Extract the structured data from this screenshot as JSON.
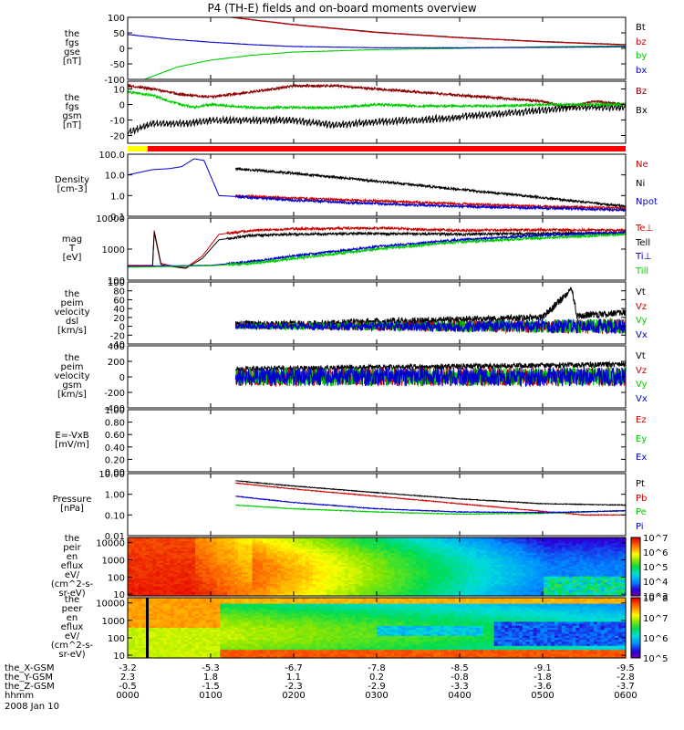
{
  "title": "P4 (TH-E) fields and on-board moments overview",
  "date": "2008 Jan 10",
  "colorbars": {
    "eflux_i": {
      "labels": [
        "10^7",
        "10^6",
        "10^5",
        "10^4",
        "10^3"
      ],
      "exps": [
        7,
        6,
        5,
        4,
        3
      ]
    },
    "eflux_e": {
      "labels": [
        "10^8",
        "10^7",
        "10^6",
        "10^5"
      ],
      "exps": [
        8,
        7,
        6,
        5
      ]
    }
  },
  "colors": {
    "black": "#000000",
    "red": "#cc0000",
    "green": "#00cc00",
    "blue": "#0000cc",
    "darkred": "#8b0000"
  },
  "ephemeris": {
    "rows": [
      {
        "label": "the_X-GSM",
        "values": [
          "-3.2",
          "-5.3",
          "-6.7",
          "-7.8",
          "-8.5",
          "-9.1",
          "-9.5"
        ]
      },
      {
        "label": "the_Y-GSM",
        "values": [
          "2.3",
          "1.8",
          "1.1",
          "0.2",
          "-0.8",
          "-1.8",
          "-2.8"
        ]
      },
      {
        "label": "the_Z-GSM",
        "values": [
          "-0.5",
          "-1.5",
          "-2.3",
          "-2.9",
          "-3.3",
          "-3.6",
          "-3.7"
        ]
      },
      {
        "label": "hhmm",
        "values": [
          "0000",
          "0100",
          "0200",
          "0300",
          "0400",
          "0500",
          "0600"
        ]
      }
    ]
  },
  "chart_data": [
    {
      "type": "line",
      "id": "fgs_gse",
      "ylabel": [
        "the",
        "fgs",
        "gse",
        "[nT]"
      ],
      "ylim": [
        -100,
        100
      ],
      "yticks": [
        "100",
        "50",
        "0",
        "-50",
        "-100"
      ],
      "ytickvals": [
        100,
        50,
        0,
        -50,
        -100
      ],
      "series": [
        {
          "name": "Bt",
          "color": "#000000",
          "x": [
            1.25,
            2,
            3,
            4,
            5,
            6
          ],
          "y": [
            100,
            77,
            52,
            35,
            22,
            12
          ]
        },
        {
          "name": "bz",
          "color": "#cc0000",
          "x": [
            1.25,
            2,
            3,
            4,
            5,
            6
          ],
          "y": [
            100,
            76,
            51,
            34,
            21,
            11
          ]
        },
        {
          "name": "by",
          "color": "#00cc00",
          "x": [
            0.2,
            0.6,
            1,
            1.5,
            2,
            3,
            4,
            5,
            6
          ],
          "y": [
            -100,
            -60,
            -38,
            -22,
            -12,
            -4,
            0,
            5,
            8
          ]
        },
        {
          "name": "bx",
          "color": "#0000cc",
          "x": [
            0,
            0.5,
            1,
            1.5,
            2,
            3,
            4,
            5,
            6
          ],
          "y": [
            45,
            30,
            20,
            12,
            6,
            2,
            2,
            3,
            5
          ]
        }
      ]
    },
    {
      "type": "line",
      "id": "fgs_gsm",
      "ylabel": [
        "the",
        "fgs",
        "gsm",
        "[nT]"
      ],
      "ylim": [
        -25,
        15
      ],
      "yticks": [
        "10",
        "0",
        "-10",
        "-20"
      ],
      "ytickvals": [
        10,
        0,
        -10,
        -20
      ],
      "series": [
        {
          "name": "Bz",
          "color": "#8b0000",
          "x": [
            0,
            0.3,
            0.7,
            1,
            1.5,
            2,
            2.5,
            3,
            3.5,
            4,
            4.5,
            5,
            5.3,
            5.6,
            6
          ],
          "y": [
            12,
            10,
            6,
            5,
            8,
            12,
            12,
            10,
            8,
            6,
            4,
            2,
            -2,
            2,
            0
          ]
        },
        {
          "name": "Bx",
          "color": "#000000",
          "x": [
            0,
            0.3,
            0.7,
            1,
            1.5,
            2,
            2.5,
            3,
            3.5,
            4,
            4.5,
            5,
            5.3,
            5.6,
            6
          ],
          "y": [
            -20,
            -14,
            -14,
            -12,
            -12,
            -12,
            -15,
            -13,
            -12,
            -10,
            -8,
            -6,
            -4,
            -4,
            -4
          ]
        },
        {
          "name": "",
          "color": "#00cc00",
          "x": [
            0,
            0.3,
            0.5,
            0.8,
            1,
            1.5,
            2,
            2.5,
            3,
            3.5,
            4,
            4.5,
            5,
            5.5,
            6
          ],
          "y": [
            8,
            6,
            2,
            -2,
            0,
            -2,
            -2,
            -2,
            0,
            -1,
            -1,
            -1,
            0,
            0,
            0
          ]
        }
      ]
    },
    {
      "type": "flag",
      "id": "mode_bar",
      "segments": [
        {
          "x0": 0,
          "x1": 0.24,
          "color": "#ffff00"
        },
        {
          "x0": 0.24,
          "x1": 6,
          "color": "#ff0000"
        }
      ]
    },
    {
      "type": "line",
      "id": "density",
      "ylabel": [
        "Density",
        "[cm-3]"
      ],
      "ylog": true,
      "ylim": [
        0.1,
        100
      ],
      "yticks": [
        "100.0",
        "10.0",
        "1.0",
        "0.1"
      ],
      "ytickvals": [
        100,
        10,
        1,
        0.1
      ],
      "series": [
        {
          "name": "Ne",
          "color": "#cc0000",
          "x": [
            1.3,
            2,
            3,
            4,
            5,
            6
          ],
          "y": [
            1.0,
            0.75,
            0.55,
            0.4,
            0.3,
            0.25
          ]
        },
        {
          "name": "Ni",
          "color": "#000000",
          "x": [
            1.3,
            2,
            3,
            4,
            5,
            6
          ],
          "y": [
            20,
            12,
            5,
            2,
            0.8,
            0.3
          ]
        },
        {
          "name": "Npot",
          "color": "#0000cc",
          "x": [
            0,
            0.3,
            0.5,
            0.65,
            0.8,
            0.92,
            1.1,
            1.3,
            2,
            3,
            4,
            5,
            6
          ],
          "y": [
            10,
            18,
            20,
            25,
            60,
            50,
            1.0,
            0.9,
            0.6,
            0.4,
            0.3,
            0.25,
            0.2
          ]
        }
      ]
    },
    {
      "type": "line",
      "id": "temperature",
      "ylabel": [
        "mag",
        "T",
        "[eV]"
      ],
      "ylog": true,
      "ylim": [
        100,
        10000
      ],
      "yticks": [
        "10000",
        "1000",
        "100"
      ],
      "ytickvals": [
        10000,
        1000,
        100
      ],
      "series": [
        {
          "name": "Te⊥",
          "color": "#cc0000",
          "x": [
            0,
            0.3,
            0.32,
            0.4,
            0.5,
            0.7,
            0.9,
            1.1,
            1.5,
            2,
            3,
            4,
            5,
            6
          ],
          "y": [
            300,
            300,
            4000,
            350,
            300,
            250,
            600,
            3000,
            4000,
            4500,
            4800,
            4000,
            4200,
            4000
          ]
        },
        {
          "name": "Tell",
          "color": "#000000",
          "x": [
            0,
            0.3,
            0.32,
            0.4,
            0.5,
            0.7,
            0.9,
            1.1,
            1.5,
            2,
            3,
            4,
            5,
            6
          ],
          "y": [
            280,
            280,
            3500,
            320,
            280,
            240,
            500,
            2000,
            2800,
            3000,
            3200,
            3000,
            3200,
            3300
          ]
        },
        {
          "name": "Ti⊥",
          "color": "#0000cc",
          "x": [
            0,
            1,
            1.5,
            2,
            3,
            4,
            5,
            6
          ],
          "y": [
            280,
            300,
            400,
            600,
            1200,
            2000,
            2800,
            3500
          ]
        },
        {
          "name": "Till",
          "color": "#00cc00",
          "x": [
            0,
            1,
            1.5,
            2,
            3,
            4,
            5,
            6
          ],
          "y": [
            260,
            290,
            350,
            500,
            1000,
            1700,
            2300,
            3000
          ]
        }
      ]
    },
    {
      "type": "line",
      "id": "peim_dsl",
      "ylabel": [
        "the",
        "peim",
        "velocity",
        "dsl",
        "[km/s]"
      ],
      "ylim": [
        -40,
        100
      ],
      "yticks": [
        "100",
        "80",
        "60",
        "40",
        "20",
        "0",
        "-20",
        "-40"
      ],
      "ytickvals": [
        100,
        80,
        60,
        40,
        20,
        0,
        -20,
        -40
      ],
      "series": [
        {
          "name": "Vt",
          "color": "#000000",
          "x": [
            1.3,
            2,
            3,
            4,
            5,
            5.35,
            5.42,
            5.5,
            6
          ],
          "y": [
            5,
            5,
            10,
            15,
            20,
            85,
            20,
            25,
            30
          ]
        },
        {
          "name": "Vz",
          "color": "#cc0000",
          "x": [
            1.3,
            6
          ],
          "y": [
            0,
            0
          ]
        },
        {
          "name": "Vy",
          "color": "#00cc00",
          "x": [
            1.3,
            6
          ],
          "y": [
            0,
            0
          ]
        },
        {
          "name": "Vx",
          "color": "#0000cc",
          "x": [
            1.3,
            6
          ],
          "y": [
            0,
            0
          ]
        }
      ]
    },
    {
      "type": "line",
      "id": "peim_gsm",
      "ylabel": [
        "the",
        "peim",
        "velocity",
        "gsm",
        "[km/s]"
      ],
      "ylim": [
        -400,
        400
      ],
      "yticks": [
        "400",
        "200",
        "0",
        "-200",
        "-400"
      ],
      "ytickvals": [
        400,
        200,
        0,
        -200,
        -400
      ],
      "series": [
        {
          "name": "Vt",
          "color": "#000000",
          "x": [
            1.3,
            6
          ],
          "y": [
            100,
            160
          ]
        },
        {
          "name": "Vz",
          "color": "#cc0000",
          "x": [
            1.3,
            6
          ],
          "y": [
            0,
            0
          ]
        },
        {
          "name": "Vy",
          "color": "#00cc00",
          "x": [
            1.3,
            6
          ],
          "y": [
            0,
            0
          ]
        },
        {
          "name": "Vx",
          "color": "#0000cc",
          "x": [
            1.3,
            6
          ],
          "y": [
            0,
            0
          ]
        }
      ]
    },
    {
      "type": "line",
      "id": "e_vxb",
      "ylabel": [
        "E=-VxB",
        "[mV/m]"
      ],
      "ylim": [
        0,
        1
      ],
      "yticks": [
        "1.00",
        "0.80",
        "0.60",
        "0.40",
        "0.20",
        "0.00"
      ],
      "ytickvals": [
        1,
        0.8,
        0.6,
        0.4,
        0.2,
        0
      ],
      "series": [
        {
          "name": "Ez",
          "color": "#cc0000",
          "x": [],
          "y": []
        },
        {
          "name": "Ey",
          "color": "#00cc00",
          "x": [],
          "y": []
        },
        {
          "name": "Ex",
          "color": "#0000cc",
          "x": [],
          "y": []
        }
      ]
    },
    {
      "type": "line",
      "id": "pressure",
      "ylabel": [
        "Pressure",
        "[nPa]"
      ],
      "ylog": true,
      "ylim": [
        0.01,
        10
      ],
      "yticks": [
        "10.00",
        "1.00",
        "0.10",
        "0.01"
      ],
      "ytickvals": [
        10,
        1,
        0.1,
        0.01
      ],
      "series": [
        {
          "name": "Pt",
          "color": "#000000",
          "x": [
            1.3,
            2,
            3,
            4,
            5,
            6
          ],
          "y": [
            4.5,
            2.5,
            1.2,
            0.6,
            0.35,
            0.3
          ]
        },
        {
          "name": "Pb",
          "color": "#cc0000",
          "x": [
            1.3,
            2,
            3,
            4,
            5,
            5.5,
            6
          ],
          "y": [
            3.5,
            1.8,
            0.8,
            0.35,
            0.15,
            0.1,
            0.1
          ]
        },
        {
          "name": "Pe",
          "color": "#00cc00",
          "x": [
            1.3,
            2,
            3,
            4,
            5,
            6
          ],
          "y": [
            0.3,
            0.2,
            0.14,
            0.11,
            0.12,
            0.16
          ]
        },
        {
          "name": "Pi",
          "color": "#0000cc",
          "x": [
            1.3,
            2,
            3,
            4,
            5,
            6
          ],
          "y": [
            0.8,
            0.4,
            0.2,
            0.14,
            0.13,
            0.16
          ]
        }
      ]
    },
    {
      "type": "heatmap",
      "id": "eflux_i",
      "ylabel": [
        "the",
        "peir",
        "en",
        "eflux",
        "eV/",
        "(cm^2-s-",
        "sr-eV)"
      ],
      "ylog": true,
      "ylim": [
        8,
        20000
      ],
      "yticks": [
        "10000",
        "1000",
        "100",
        "10"
      ],
      "ytickvals": [
        10000,
        1000,
        100,
        10
      ],
      "zlog": true,
      "zlim": [
        1000,
        10000000
      ]
    },
    {
      "type": "heatmap",
      "id": "eflux_e",
      "ylabel": [
        "the",
        "peer",
        "en",
        "eflux",
        "eV/",
        "(cm^2-s-",
        "sr-eV)"
      ],
      "ylog": true,
      "ylim": [
        7,
        20000
      ],
      "yticks": [
        "10000",
        "1000",
        "100",
        "10"
      ],
      "ytickvals": [
        10000,
        1000,
        100,
        10
      ],
      "zlog": true,
      "zlim": [
        100000,
        100000000
      ]
    }
  ]
}
